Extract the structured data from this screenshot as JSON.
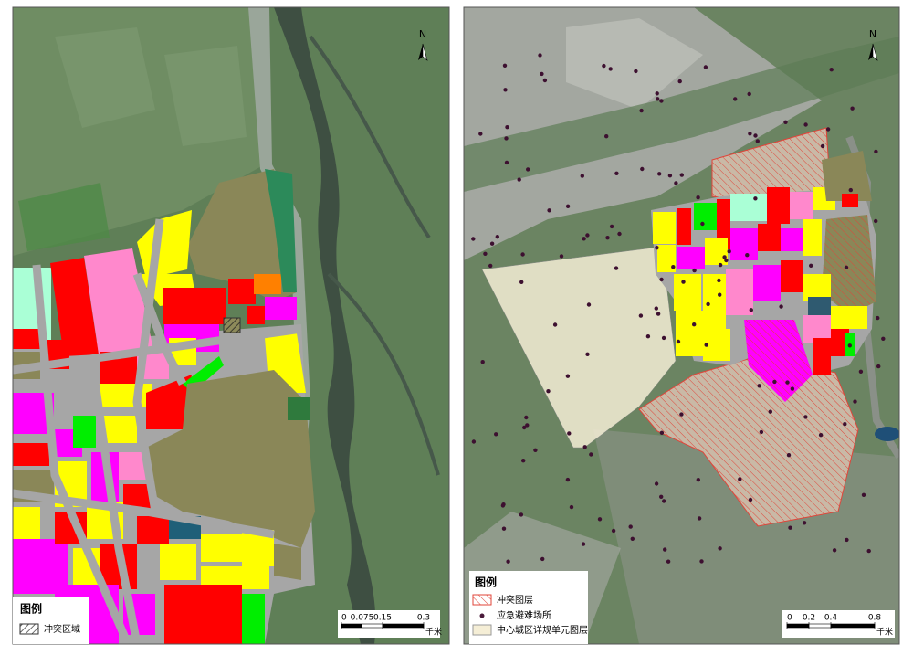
{
  "left_map": {
    "north_label": "N",
    "legend": {
      "title": "图例",
      "items": [
        "冲突区域"
      ]
    },
    "scale_bar": {
      "ticks": [
        0,
        0.075,
        0.15,
        0.3
      ],
      "unit": "千米"
    }
  },
  "right_map": {
    "north_label": "N",
    "legend": {
      "title": "图例",
      "items": [
        "冲突图层",
        "应急避难场所",
        "中心城区详规单元图层"
      ]
    },
    "scale_bar": {
      "ticks": [
        0,
        0.2,
        0.4,
        0.8
      ],
      "unit": "千米"
    }
  }
}
